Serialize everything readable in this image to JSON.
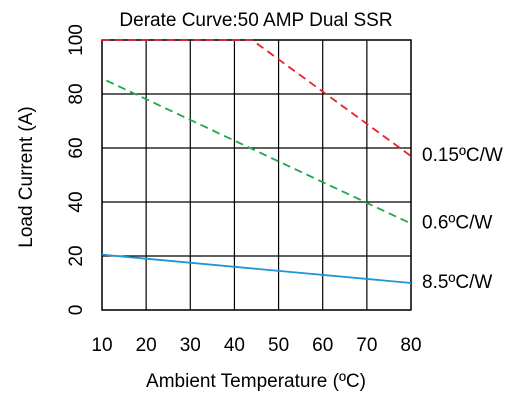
{
  "chart_data": {
    "type": "line",
    "title": "Derate Curve:50 AMP Dual SSR",
    "xlabel": "Ambient Temperature (ºC)",
    "ylabel": "Load Current (A)",
    "xlim": [
      10,
      80
    ],
    "ylim": [
      0,
      100
    ],
    "x_ticks": [
      10,
      20,
      30,
      40,
      50,
      60,
      70,
      80
    ],
    "y_ticks": [
      0,
      20,
      40,
      60,
      80,
      100
    ],
    "grid": true,
    "series": [
      {
        "name": "0.15ºC/W",
        "color": "#e8202a",
        "dash": "dashed",
        "x": [
          10,
          44,
          80
        ],
        "y": [
          100,
          100,
          57
        ]
      },
      {
        "name": "0.6ºC/W",
        "color": "#1ea84a",
        "dash": "dashed",
        "x": [
          11,
          80
        ],
        "y": [
          85,
          32
        ]
      },
      {
        "name": "8.5ºC/W",
        "color": "#1f96d6",
        "dash": "solid",
        "x": [
          10,
          80
        ],
        "y": [
          20.5,
          10
        ]
      }
    ]
  }
}
